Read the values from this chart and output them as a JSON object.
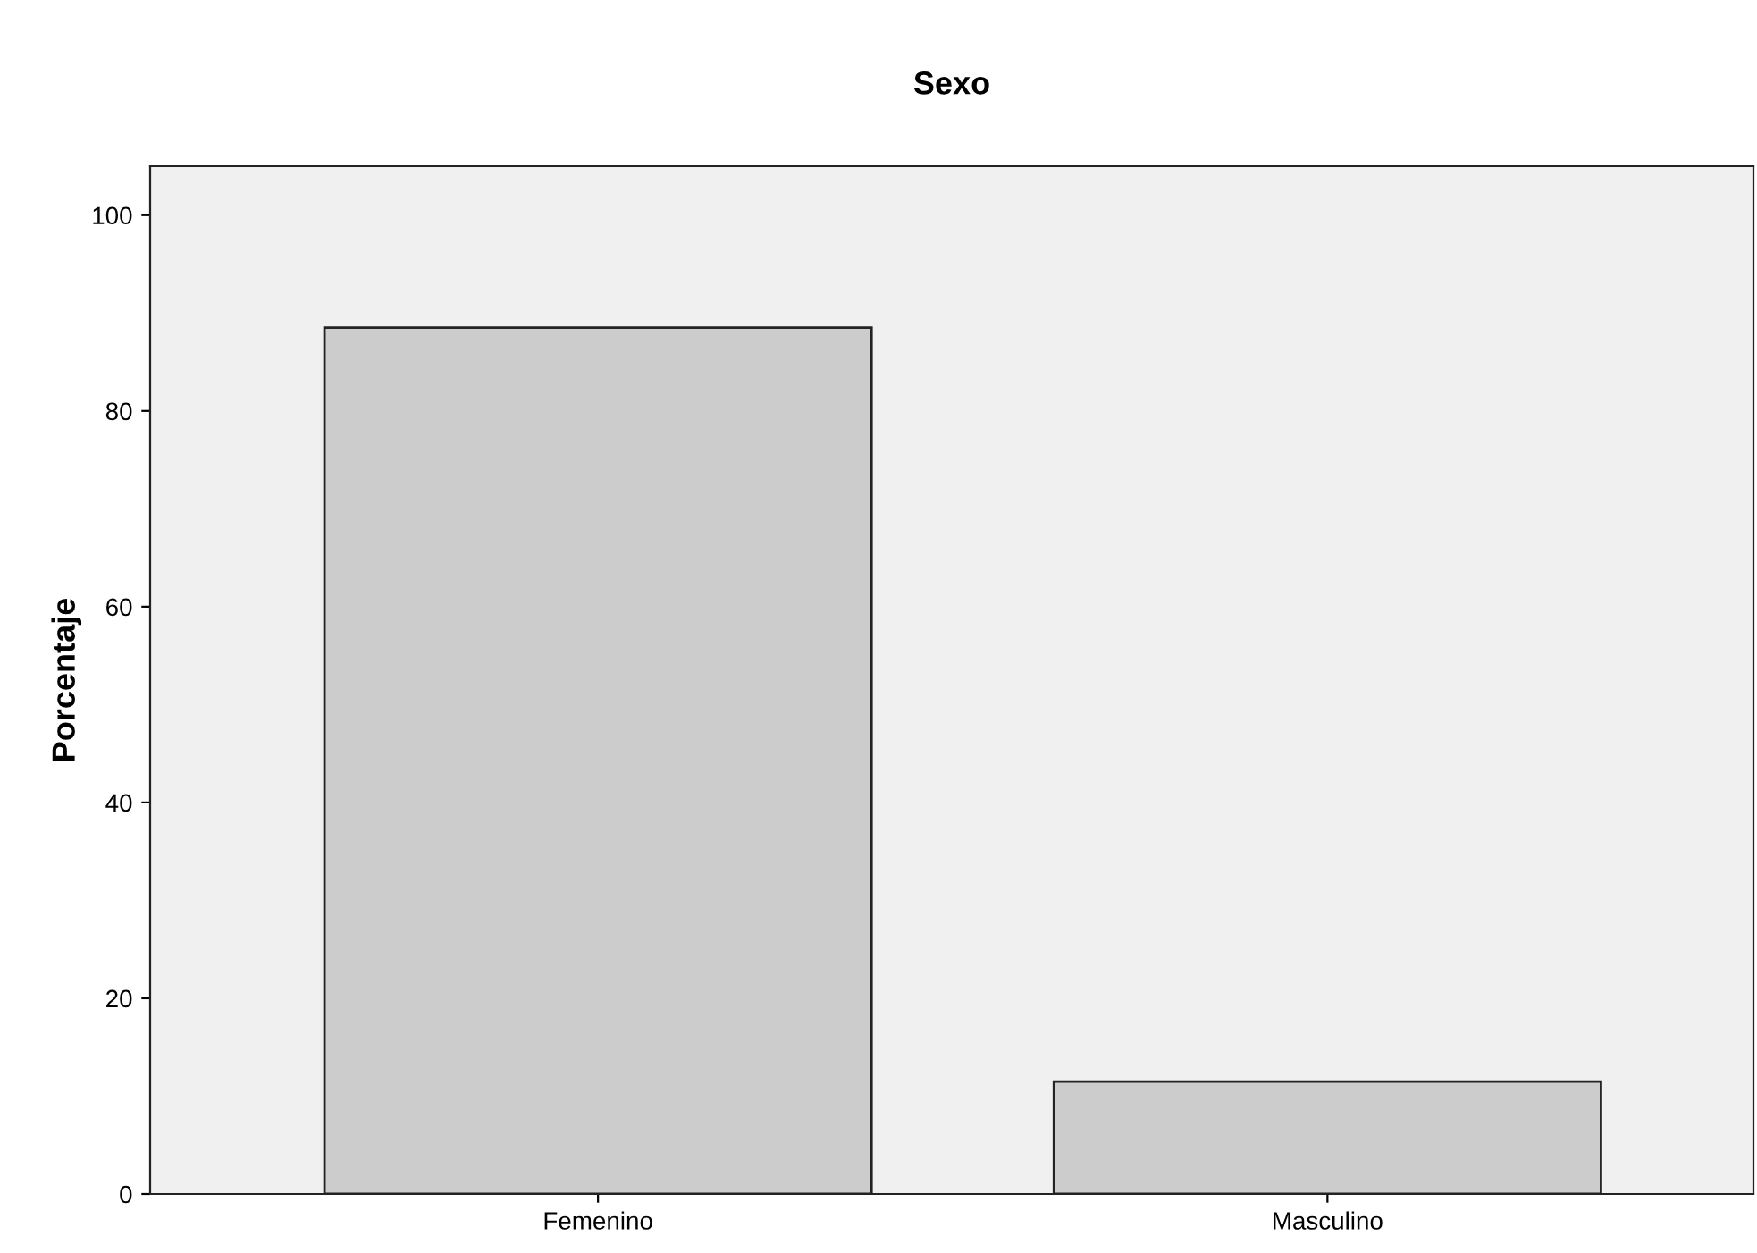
{
  "chart_data": {
    "type": "bar",
    "title": "Sexo",
    "ylabel": "Porcentaje",
    "categories": [
      "Femenino",
      "Masculino"
    ],
    "values": [
      88.5,
      11.5
    ],
    "color": "#cccccc",
    "ylim": [
      0,
      105
    ],
    "yticks": [
      0,
      20,
      40,
      60,
      80,
      100
    ],
    "grid": false,
    "legend": false
  }
}
